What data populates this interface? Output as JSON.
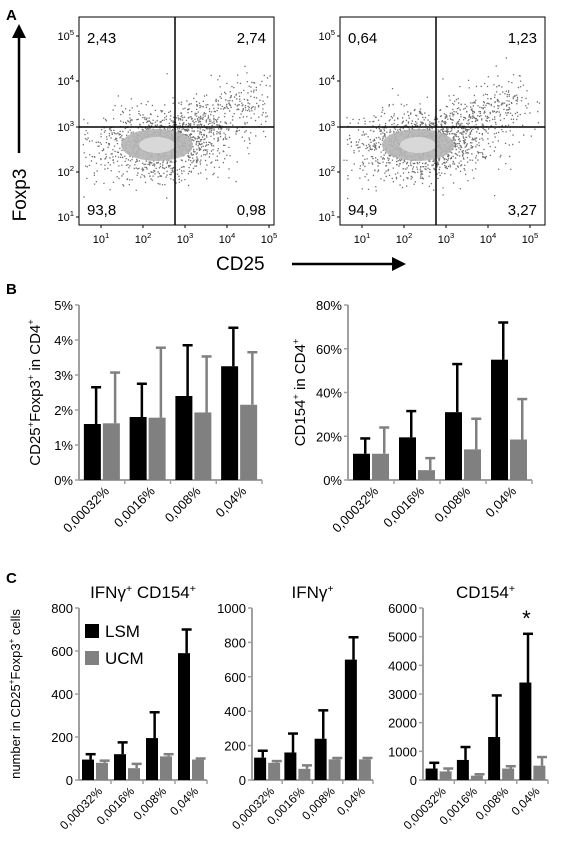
{
  "panel_letters": [
    "A",
    "B",
    "C"
  ],
  "colors": {
    "lsm": "#000000",
    "ucm": "#808080",
    "axis": "#a0a0a0",
    "flow_dots": "#6f6f6f",
    "flow_core": "#b5b5b5"
  },
  "chart_data": [
    {
      "panel": "A",
      "type": "scatter",
      "subtype": "flow-cytometry-quadrant-plot",
      "xlabel": "CD25",
      "ylabel": "Foxp3",
      "scale": "log",
      "x_ticks": [
        "10^1",
        "10^2",
        "10^3",
        "10^4",
        "10^5"
      ],
      "y_ticks": [
        "10^5",
        "10^4",
        "10^3",
        "10^2",
        "10^1"
      ],
      "gate": {
        "x": 500,
        "y": 600
      },
      "plots": [
        {
          "quadrants": {
            "top_left": "2,43",
            "top_right": "2,74",
            "bottom_left": "93,8",
            "bottom_right": "0,98"
          }
        },
        {
          "quadrants": {
            "top_left": "0,64",
            "top_right": "1,23",
            "bottom_left": "94,9",
            "bottom_right": "3,27"
          }
        }
      ]
    },
    {
      "panel": "B",
      "type": "bar",
      "categories": [
        "0,00032%",
        "0,0016%",
        "0,008%",
        "0,04%"
      ],
      "ylabel": "CD25⁺Foxp3⁺ in CD4⁺",
      "ylim": [
        0,
        5
      ],
      "y_ticks": [
        "0%",
        "1%",
        "2%",
        "3%",
        "4%",
        "5%"
      ],
      "series": [
        {
          "values": [
            1.6,
            1.8,
            2.4,
            3.25
          ],
          "errors": [
            1.05,
            0.95,
            1.45,
            1.1
          ]
        },
        {
          "values": [
            1.62,
            1.78,
            1.93,
            2.15
          ],
          "errors": [
            1.45,
            2.0,
            1.6,
            1.5
          ]
        }
      ]
    },
    {
      "panel": "B",
      "type": "bar",
      "categories": [
        "0,00032%",
        "0,0016%",
        "0,008%",
        "0,04%"
      ],
      "ylabel": "CD154⁺ in CD4⁺",
      "ylim": [
        0,
        80
      ],
      "y_ticks": [
        "0%",
        "20%",
        "40%",
        "60%",
        "80%"
      ],
      "series": [
        {
          "values": [
            12,
            19.5,
            31,
            55
          ],
          "errors": [
            7,
            12,
            22,
            17
          ]
        },
        {
          "values": [
            12,
            4.5,
            14,
            18.5
          ],
          "errors": [
            12,
            5.5,
            14,
            18.5
          ]
        }
      ]
    },
    {
      "panel": "C",
      "type": "bar",
      "title": "IFNγ⁺ CD154⁺",
      "ylabel": "number in CD25⁺Foxp3⁺ cells",
      "categories": [
        "0,00032%",
        "0,0016%",
        "0,008%",
        "0,04%"
      ],
      "ylim": [
        0,
        800
      ],
      "y_ticks": [
        "0",
        "200",
        "400",
        "600",
        "800"
      ],
      "legend": {
        "position": "top-left",
        "entries": [
          "LSM",
          "UCM"
        ]
      },
      "series": [
        {
          "name": "LSM",
          "values": [
            95,
            120,
            195,
            590
          ],
          "errors": [
            25,
            55,
            120,
            110
          ]
        },
        {
          "name": "UCM",
          "values": [
            80,
            55,
            110,
            95
          ],
          "errors": [
            10,
            20,
            10,
            5
          ]
        }
      ]
    },
    {
      "panel": "C",
      "type": "bar",
      "title": "IFNγ⁺",
      "categories": [
        "0,00032%",
        "0,0016%",
        "0,008%",
        "0,04%"
      ],
      "ylim": [
        0,
        1000
      ],
      "y_ticks": [
        "0",
        "200",
        "400",
        "600",
        "800",
        "1000"
      ],
      "series": [
        {
          "name": "LSM",
          "values": [
            130,
            160,
            240,
            700
          ],
          "errors": [
            40,
            110,
            165,
            130
          ]
        },
        {
          "name": "UCM",
          "values": [
            100,
            65,
            120,
            120
          ],
          "errors": [
            10,
            20,
            8,
            8
          ]
        }
      ]
    },
    {
      "panel": "C",
      "type": "bar",
      "title": "CD154⁺",
      "categories": [
        "0,00032%",
        "0,0016%",
        "0,008%",
        "0,04%"
      ],
      "ylim": [
        0,
        6000
      ],
      "y_ticks": [
        "0",
        "1000",
        "2000",
        "3000",
        "4000",
        "5000",
        "6000"
      ],
      "annotation": "*",
      "annotation_index": 3,
      "series": [
        {
          "name": "LSM",
          "values": [
            400,
            700,
            1500,
            3400
          ],
          "errors": [
            200,
            450,
            1450,
            1700
          ]
        },
        {
          "name": "UCM",
          "values": [
            300,
            150,
            400,
            500
          ],
          "errors": [
            100,
            50,
            80,
            300
          ]
        }
      ]
    }
  ]
}
